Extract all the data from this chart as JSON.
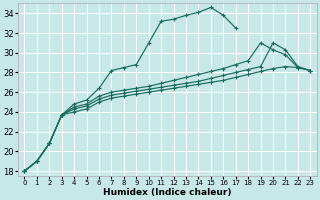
{
  "background_color": "#c8e8e8",
  "grid_color": "#ffffff",
  "line_color": "#1a6b5a",
  "xlabel": "Humidex (Indice chaleur)",
  "xlim": [
    -0.5,
    23.5
  ],
  "ylim": [
    17.5,
    35.0
  ],
  "yticks": [
    18,
    20,
    22,
    24,
    26,
    28,
    30,
    32,
    34
  ],
  "xticks": [
    0,
    1,
    2,
    3,
    4,
    5,
    6,
    7,
    8,
    9,
    10,
    11,
    12,
    13,
    14,
    15,
    16,
    17,
    18,
    19,
    20,
    21,
    22,
    23
  ],
  "line1_x": [
    0,
    1,
    2,
    3,
    4,
    5,
    6,
    7,
    8,
    9,
    10,
    11,
    12,
    13,
    14,
    15,
    16,
    17
  ],
  "line1_y": [
    18.0,
    19.0,
    20.8,
    23.7,
    24.8,
    25.2,
    26.4,
    28.2,
    28.5,
    28.8,
    31.0,
    33.2,
    33.4,
    33.8,
    34.1,
    34.6,
    33.8,
    32.5
  ],
  "line2_x": [
    0,
    1,
    2,
    3,
    4,
    5,
    6,
    7,
    8,
    9,
    10,
    11,
    12,
    13,
    14,
    15,
    16,
    17,
    18,
    19,
    20,
    21,
    22,
    23
  ],
  "line2_y": [
    18.0,
    19.0,
    20.8,
    23.7,
    24.5,
    24.8,
    25.6,
    26.0,
    26.2,
    26.4,
    26.6,
    26.9,
    27.2,
    27.5,
    27.8,
    28.1,
    28.4,
    28.8,
    29.2,
    31.0,
    30.3,
    29.8,
    28.5,
    28.2
  ],
  "line3_x": [
    0,
    1,
    2,
    3,
    4,
    5,
    6,
    7,
    8,
    9,
    10,
    11,
    12,
    13,
    14,
    15,
    16,
    17,
    18,
    19,
    20,
    21,
    22,
    23
  ],
  "line3_y": [
    18.0,
    19.0,
    20.8,
    23.7,
    24.3,
    24.6,
    25.3,
    25.7,
    25.9,
    26.1,
    26.3,
    26.5,
    26.7,
    26.9,
    27.1,
    27.4,
    27.7,
    28.0,
    28.3,
    28.6,
    31.0,
    30.3,
    28.6,
    28.2
  ],
  "line4_x": [
    0,
    1,
    2,
    3,
    4,
    5,
    6,
    7,
    8,
    9,
    10,
    11,
    12,
    13,
    14,
    15,
    16,
    17,
    18,
    19,
    20,
    21,
    22,
    23
  ],
  "line4_y": [
    18.0,
    19.0,
    20.8,
    23.7,
    24.0,
    24.3,
    25.0,
    25.4,
    25.6,
    25.8,
    26.0,
    26.2,
    26.4,
    26.6,
    26.8,
    27.0,
    27.2,
    27.5,
    27.8,
    28.1,
    28.4,
    28.6,
    28.5,
    28.2
  ]
}
